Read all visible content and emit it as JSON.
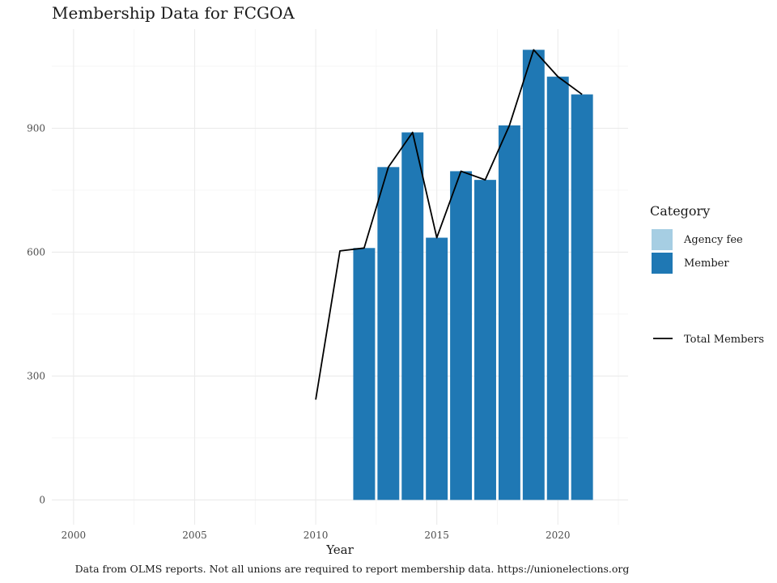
{
  "chart_data": {
    "type": "bar",
    "title": "Membership Data for FCGOA",
    "xlabel": "Year",
    "ylabel": "",
    "caption": "Data from OLMS reports. Not all unions are required to report membership data. https://unionelections.org",
    "xlim": [
      1999.1,
      2022.9
    ],
    "ylim": [
      -60,
      1140
    ],
    "x_ticks": [
      2000,
      2005,
      2010,
      2015,
      2020
    ],
    "y_ticks": [
      0,
      300,
      600,
      900
    ],
    "grid": true,
    "legend": {
      "title": "Category",
      "placement": "right",
      "entries": [
        "Agency fee",
        "Member"
      ],
      "line_entry": "Total Members"
    },
    "colors": {
      "agency_fee": "#a6cee3",
      "member": "#1f78b4",
      "total_line": "#000000"
    },
    "bars": {
      "series": [
        {
          "name": "Member",
          "x": [
            2012,
            2013,
            2014,
            2015,
            2016,
            2017,
            2018,
            2019,
            2020,
            2021
          ],
          "values": [
            610,
            806,
            890,
            635,
            796,
            775,
            907,
            1090,
            1025,
            982
          ]
        },
        {
          "name": "Agency fee",
          "x": [],
          "values": []
        }
      ]
    },
    "line": {
      "name": "Total Members",
      "x": [
        2010,
        2011,
        2012,
        2013,
        2014,
        2015,
        2016,
        2017,
        2018,
        2019,
        2020,
        2021
      ],
      "values": [
        243,
        603,
        610,
        806,
        890,
        635,
        796,
        775,
        907,
        1090,
        1025,
        982
      ]
    }
  }
}
